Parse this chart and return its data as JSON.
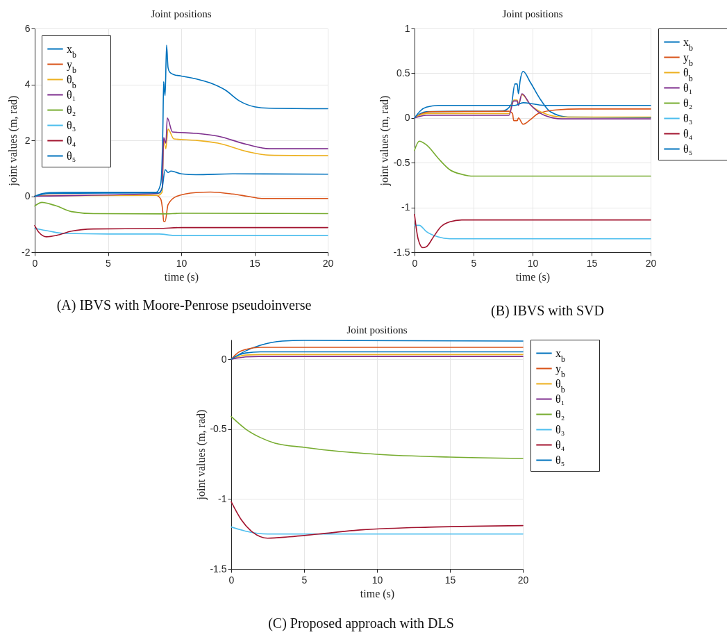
{
  "chart_data": [
    {
      "type": "line",
      "title": "Joint positions",
      "xlabel": "time (s)",
      "ylabel": "joint values (m, rad)",
      "xlim": [
        0,
        20
      ],
      "xticks": [
        0,
        5,
        10,
        15,
        20
      ],
      "ylim": [
        -2,
        6
      ],
      "yticks": [
        -2,
        0,
        2,
        4,
        6
      ],
      "grid": true,
      "legend": "top left",
      "annotations": [
        "(A) IBVS with Moore-Penrose pseudoinverse"
      ],
      "series": [
        {
          "name": "x$_{b}$",
          "color": "#0072bd",
          "x": [
            0,
            0.5,
            1,
            2,
            8.3,
            8.6,
            8.75,
            8.8,
            8.85,
            8.9,
            9.0,
            9.1,
            9.2,
            9.5,
            10,
            11,
            12,
            13,
            14,
            15,
            16,
            20
          ],
          "values": [
            0,
            0.09,
            0.13,
            0.14,
            0.14,
            0.45,
            2.5,
            4.1,
            3.8,
            3.6,
            5.4,
            4.6,
            4.45,
            4.35,
            4.3,
            4.2,
            4.05,
            3.8,
            3.4,
            3.2,
            3.15,
            3.13
          ]
        },
        {
          "name": "y$_{b}$",
          "color": "#d95319",
          "x": [
            0,
            1,
            8.3,
            8.6,
            8.75,
            8.8,
            8.9,
            9.1,
            9.7,
            11,
            12,
            13.5,
            14.5,
            15.5,
            20
          ],
          "values": [
            0,
            0.03,
            0.03,
            -0.1,
            -0.6,
            -0.9,
            -0.9,
            -0.3,
            0,
            0.13,
            0.15,
            0.08,
            0,
            -0.08,
            -0.08
          ]
        },
        {
          "name": "θ$_{b}$",
          "color": "#edb120",
          "x": [
            0,
            1,
            8.4,
            8.7,
            8.8,
            8.95,
            9.1,
            9.5,
            11,
            12.5,
            14.5,
            16,
            20
          ],
          "values": [
            0,
            0.02,
            0.03,
            0.15,
            2.0,
            1.7,
            2.4,
            2.05,
            2.0,
            1.9,
            1.6,
            1.47,
            1.45
          ]
        },
        {
          "name": "θ₁",
          "color": "#7e2f8e",
          "x": [
            0,
            1,
            8.4,
            8.7,
            8.8,
            8.95,
            9.05,
            9.4,
            11,
            12.5,
            14.5,
            16,
            20
          ],
          "values": [
            0,
            0.01,
            0.1,
            0.3,
            2.1,
            1.9,
            2.8,
            2.3,
            2.25,
            2.15,
            1.85,
            1.7,
            1.7
          ]
        },
        {
          "name": "θ₂",
          "color": "#77ac30",
          "x": [
            0,
            0.5,
            1,
            1.5,
            2.5,
            4,
            8.8,
            10,
            20
          ],
          "values": [
            -0.35,
            -0.22,
            -0.27,
            -0.35,
            -0.55,
            -0.62,
            -0.63,
            -0.61,
            -0.62
          ]
        },
        {
          "name": "θ₃",
          "color": "#4dbeee",
          "x": [
            0,
            1,
            2,
            5,
            8.5,
            9.5,
            20
          ],
          "values": [
            -1.15,
            -1.25,
            -1.33,
            -1.35,
            -1.35,
            -1.4,
            -1.4
          ]
        },
        {
          "name": "θ₄",
          "color": "#a2142f",
          "x": [
            0,
            0.3,
            0.8,
            1.5,
            2.5,
            4,
            8.5,
            10,
            20
          ],
          "values": [
            -1.05,
            -1.3,
            -1.45,
            -1.4,
            -1.25,
            -1.17,
            -1.15,
            -1.12,
            -1.12
          ]
        },
        {
          "name": "θ₅",
          "color": "#0072bd",
          "x": [
            0,
            1,
            8.5,
            8.7,
            8.9,
            9.1,
            9.3,
            10,
            11,
            13.5,
            20
          ],
          "values": [
            0,
            0.1,
            0.12,
            0.3,
            0.95,
            0.85,
            0.9,
            0.8,
            0.77,
            0.8,
            0.79
          ]
        }
      ]
    },
    {
      "type": "line",
      "title": "Joint positions",
      "xlabel": "time (s)",
      "ylabel": "joint values (m, rad)",
      "xlim": [
        0,
        20
      ],
      "xticks": [
        0,
        5,
        10,
        15,
        20
      ],
      "ylim": [
        -1.5,
        1
      ],
      "yticks": [
        -1.5,
        -1,
        -0.5,
        0,
        0.5,
        1
      ],
      "grid": true,
      "legend": "right",
      "annotations": [
        "(B) IBVS with SVD"
      ],
      "series": [
        {
          "name": "x$_{b}$",
          "color": "#0072bd",
          "x": [
            0,
            0.5,
            1,
            7.5,
            8.2,
            8.5,
            8.7,
            8.8,
            8.95,
            9.2,
            9.8,
            10.7,
            11.5,
            13,
            20
          ],
          "values": [
            0,
            0.05,
            0.07,
            0.08,
            0.15,
            0.38,
            0.38,
            0.27,
            0.42,
            0.52,
            0.4,
            0.2,
            0.07,
            0.01,
            0.005
          ]
        },
        {
          "name": "y$_{b}$",
          "color": "#d95319",
          "x": [
            0,
            0.5,
            1.5,
            8,
            8.3,
            8.4,
            8.7,
            8.8,
            9.2,
            9.8,
            10.5,
            12,
            14,
            20
          ],
          "values": [
            0,
            0.04,
            0.07,
            0.075,
            0.05,
            -0.03,
            -0.03,
            0,
            -0.07,
            -0.02,
            0.05,
            0.09,
            0.1,
            0.1
          ]
        },
        {
          "name": "θ$_{b}$",
          "color": "#edb120",
          "x": [
            0,
            1,
            8,
            8.4,
            8.7,
            8.8,
            9.1,
            9.8,
            11,
            12.5,
            20
          ],
          "values": [
            0,
            0.05,
            0.05,
            0.2,
            0.2,
            0.15,
            0.26,
            0.15,
            0.05,
            0.01,
            0.01
          ]
        },
        {
          "name": "θ₁",
          "color": "#7e2f8e",
          "x": [
            0,
            1,
            8,
            8.4,
            8.7,
            8.8,
            9.1,
            9.8,
            11,
            12.5,
            20
          ],
          "values": [
            0,
            0.03,
            0.03,
            0.19,
            0.19,
            0.14,
            0.27,
            0.15,
            0.03,
            -0.01,
            -0.01
          ]
        },
        {
          "name": "θ₂",
          "color": "#77ac30",
          "x": [
            0,
            0.4,
            1,
            2,
            3,
            4,
            5,
            20
          ],
          "values": [
            -0.36,
            -0.26,
            -0.3,
            -0.45,
            -0.58,
            -0.63,
            -0.65,
            -0.65
          ]
        },
        {
          "name": "θ₃",
          "color": "#4dbeee",
          "x": [
            0,
            0.4,
            1,
            2,
            3,
            20
          ],
          "values": [
            -1.2,
            -1.2,
            -1.27,
            -1.33,
            -1.35,
            -1.35
          ]
        },
        {
          "name": "θ₄",
          "color": "#a2142f",
          "x": [
            0,
            0.3,
            0.7,
            1,
            1.6,
            2.2,
            3,
            4,
            20
          ],
          "values": [
            -1.08,
            -1.35,
            -1.45,
            -1.44,
            -1.33,
            -1.22,
            -1.16,
            -1.14,
            -1.14
          ]
        },
        {
          "name": "θ₅",
          "color": "#0072bd",
          "x": [
            0,
            0.5,
            1,
            2,
            8.5,
            9.2,
            11,
            20
          ],
          "values": [
            0,
            0.08,
            0.12,
            0.14,
            0.14,
            0.17,
            0.14,
            0.14
          ]
        }
      ]
    },
    {
      "type": "line",
      "title": "Joint positions",
      "xlabel": "time (s)",
      "ylabel": "joint values (m, rad)",
      "xlim": [
        0,
        20
      ],
      "xticks": [
        0,
        5,
        10,
        15,
        20
      ],
      "ylim": [
        -1.5,
        0.14
      ],
      "yticks": [
        -1.5,
        -1,
        -0.5,
        0
      ],
      "grid": true,
      "legend": "right",
      "annotations": [
        "(C) Proposed approach with DLS"
      ],
      "series": [
        {
          "name": "x$_{b}$",
          "color": "#0072bd",
          "x": [
            0,
            1,
            2,
            3.5,
            5,
            20
          ],
          "values": [
            0,
            0.06,
            0.1,
            0.13,
            0.135,
            0.13
          ]
        },
        {
          "name": "y$_{b}$",
          "color": "#d95319",
          "x": [
            0,
            0.5,
            1,
            2,
            20
          ],
          "values": [
            0,
            0.05,
            0.07,
            0.085,
            0.085
          ]
        },
        {
          "name": "θ$_{b}$",
          "color": "#edb120",
          "x": [
            0,
            0.5,
            1,
            2,
            20
          ],
          "values": [
            0,
            0.02,
            0.03,
            0.034,
            0.034
          ]
        },
        {
          "name": "θ₁",
          "color": "#7e2f8e",
          "x": [
            0,
            0.5,
            1,
            2,
            20
          ],
          "values": [
            0,
            0.01,
            0.017,
            0.02,
            0.02
          ]
        },
        {
          "name": "θ₂",
          "color": "#77ac30",
          "x": [
            0,
            1,
            2,
            3,
            5,
            7.5,
            10,
            15,
            20
          ],
          "values": [
            -0.41,
            -0.5,
            -0.56,
            -0.6,
            -0.63,
            -0.66,
            -0.68,
            -0.7,
            -0.71
          ]
        },
        {
          "name": "θ₃",
          "color": "#4dbeee",
          "x": [
            0,
            1,
            2.5,
            20
          ],
          "values": [
            -1.2,
            -1.23,
            -1.25,
            -1.25
          ]
        },
        {
          "name": "θ₄",
          "color": "#a2142f",
          "x": [
            0,
            0.7,
            1.5,
            2.5,
            4,
            6,
            9,
            14,
            20
          ],
          "values": [
            -1.02,
            -1.15,
            -1.24,
            -1.28,
            -1.27,
            -1.25,
            -1.22,
            -1.2,
            -1.19
          ]
        },
        {
          "name": "θ₅",
          "color": "#0072bd",
          "x": [
            0,
            0.5,
            1,
            2,
            20
          ],
          "values": [
            0,
            0.03,
            0.045,
            0.053,
            0.053
          ]
        }
      ]
    }
  ]
}
